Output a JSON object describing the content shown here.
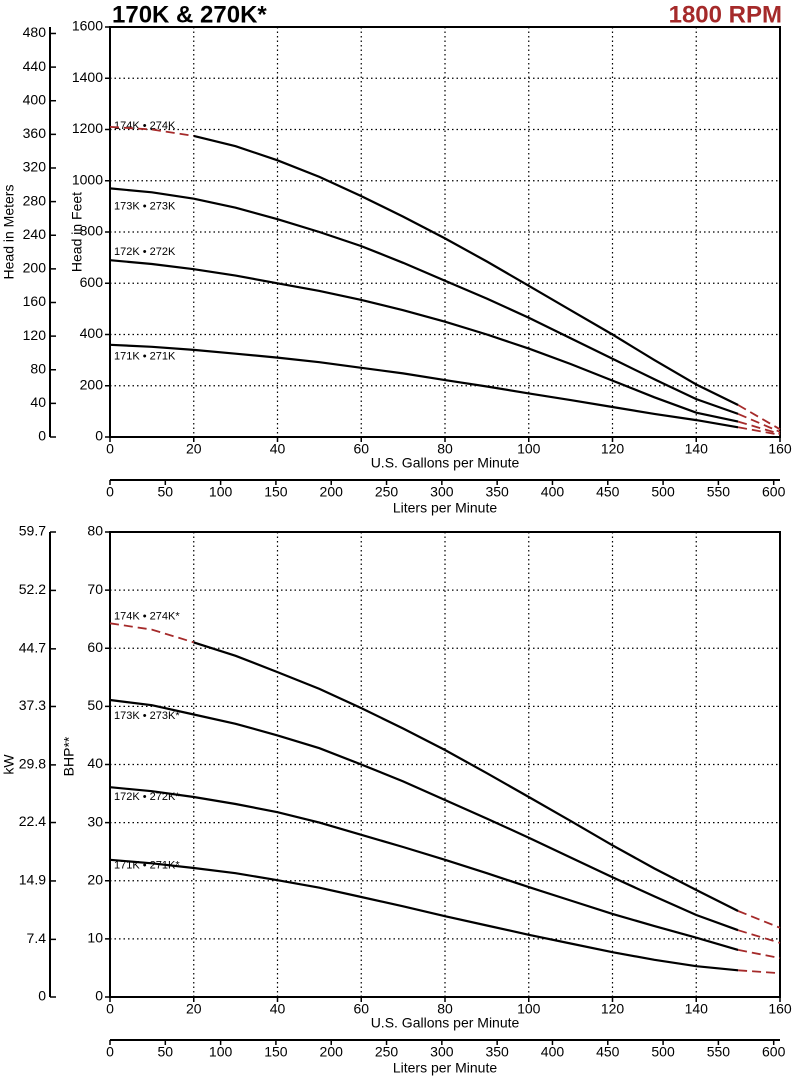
{
  "chart_data": [
    {
      "type": "line",
      "title": "170K & 270K*",
      "subtitle": "1800 RPM",
      "x": [
        0,
        10,
        20,
        30,
        40,
        50,
        60,
        70,
        80,
        90,
        100,
        110,
        120,
        130,
        140,
        150,
        160
      ],
      "xlim": [
        0,
        160
      ],
      "xticks": [
        0,
        20,
        40,
        60,
        80,
        100,
        120,
        140,
        160
      ],
      "xlabel": "U.S. Gallons per Minute",
      "x2lim": [
        0,
        605.7
      ],
      "x2ticks": [
        0,
        50,
        100,
        150,
        200,
        250,
        300,
        350,
        400,
        450,
        500,
        550,
        600
      ],
      "x2label": "Liters per Minute",
      "ylim": [
        0,
        1600
      ],
      "yticks": [
        0,
        200,
        400,
        600,
        800,
        1000,
        1200,
        1400,
        1600
      ],
      "ylabel": "Head in Feet",
      "y2lim": [
        0,
        487.7
      ],
      "y2ticks": [
        0,
        40,
        80,
        120,
        160,
        200,
        240,
        280,
        320,
        360,
        400,
        440,
        480
      ],
      "y2label": "Head in Meters",
      "grid": true,
      "series": [
        {
          "name": "174K • 274K",
          "color": "#000000",
          "values": [
            null,
            null,
            1175,
            1135,
            1080,
            1015,
            940,
            860,
            775,
            685,
            590,
            495,
            400,
            300,
            205,
            125,
            null
          ]
        },
        {
          "name": "173K • 273K",
          "color": "#000000",
          "values": [
            970,
            955,
            930,
            895,
            850,
            800,
            745,
            680,
            610,
            540,
            465,
            385,
            305,
            225,
            148,
            90,
            null
          ]
        },
        {
          "name": "172K • 272K",
          "color": "#000000",
          "values": [
            690,
            675,
            655,
            630,
            600,
            570,
            535,
            495,
            450,
            400,
            345,
            285,
            220,
            155,
            95,
            60,
            null
          ]
        },
        {
          "name": "171K • 271K",
          "color": "#000000",
          "values": [
            360,
            352,
            340,
            325,
            310,
            292,
            270,
            248,
            222,
            197,
            170,
            144,
            117,
            90,
            66,
            38,
            null
          ]
        },
        {
          "color": "#a52a2a",
          "dashed": true,
          "values": [
            1210,
            1200,
            1175,
            null,
            null,
            null,
            null,
            null,
            null,
            null,
            null,
            null,
            null,
            null,
            null,
            125,
            30
          ]
        },
        {
          "color": "#a52a2a",
          "dashed": true,
          "values": [
            null,
            null,
            null,
            null,
            null,
            null,
            null,
            null,
            null,
            null,
            null,
            null,
            null,
            null,
            null,
            90,
            20
          ]
        },
        {
          "color": "#a52a2a",
          "dashed": true,
          "values": [
            null,
            null,
            null,
            null,
            null,
            null,
            null,
            null,
            null,
            null,
            null,
            null,
            null,
            null,
            null,
            60,
            12
          ]
        },
        {
          "color": "#a52a2a",
          "dashed": true,
          "values": [
            null,
            null,
            null,
            null,
            null,
            null,
            null,
            null,
            null,
            null,
            null,
            null,
            null,
            null,
            null,
            38,
            8
          ]
        }
      ]
    },
    {
      "type": "line",
      "x": [
        0,
        10,
        20,
        30,
        40,
        50,
        60,
        70,
        80,
        90,
        100,
        110,
        120,
        130,
        140,
        150,
        160
      ],
      "xlim": [
        0,
        160
      ],
      "xticks": [
        0,
        20,
        40,
        60,
        80,
        100,
        120,
        140,
        160
      ],
      "xlabel": "U.S. Gallons per Minute",
      "x2lim": [
        0,
        605.7
      ],
      "x2ticks": [
        0,
        50,
        100,
        150,
        200,
        250,
        300,
        350,
        400,
        450,
        500,
        550,
        600
      ],
      "x2label": "Liters per Minute",
      "ylim": [
        0,
        80
      ],
      "yticks": [
        0,
        10,
        20,
        30,
        40,
        50,
        60,
        70,
        80
      ],
      "ylabel": "BHP**",
      "y2lim": [
        0,
        59.7
      ],
      "y2ticks": [
        0,
        7.4,
        14.9,
        22.4,
        29.8,
        37.3,
        44.7,
        52.2,
        59.7
      ],
      "y2label": "kW",
      "grid": true,
      "series": [
        {
          "name": "174K • 274K*",
          "color": "#000000",
          "values": [
            null,
            null,
            61,
            58.7,
            55.9,
            53,
            49.7,
            46.2,
            42.5,
            38.5,
            34.4,
            30.3,
            26.1,
            22.1,
            18.4,
            14.8,
            null
          ]
        },
        {
          "name": "173K • 273K*",
          "color": "#000000",
          "values": [
            51.1,
            50.2,
            48.6,
            47,
            45,
            42.8,
            40,
            37.1,
            33.9,
            30.7,
            27.4,
            24,
            20.6,
            17.3,
            14.1,
            11.5,
            null
          ]
        },
        {
          "name": "172K • 272K*",
          "color": "#000000",
          "values": [
            36.1,
            35.4,
            34.4,
            33.2,
            31.8,
            30,
            27.9,
            25.8,
            23.6,
            21.3,
            18.9,
            16.6,
            14.3,
            12.2,
            10.2,
            8.1,
            null
          ]
        },
        {
          "name": "171K • 271K*",
          "color": "#000000",
          "values": [
            23.6,
            23,
            22.2,
            21.3,
            20.1,
            18.8,
            17.2,
            15.6,
            13.9,
            12.3,
            10.7,
            9.2,
            7.7,
            6.4,
            5.3,
            4.6,
            null
          ]
        },
        {
          "color": "#a52a2a",
          "dashed": true,
          "values": [
            64.3,
            63.2,
            61,
            null,
            null,
            null,
            null,
            null,
            null,
            null,
            null,
            null,
            null,
            null,
            null,
            14.8,
            11.9
          ]
        },
        {
          "color": "#a52a2a",
          "dashed": true,
          "values": [
            null,
            null,
            null,
            null,
            null,
            null,
            null,
            null,
            null,
            null,
            null,
            null,
            null,
            null,
            null,
            11.5,
            9.3
          ]
        },
        {
          "color": "#a52a2a",
          "dashed": true,
          "values": [
            null,
            null,
            null,
            null,
            null,
            null,
            null,
            null,
            null,
            null,
            null,
            null,
            null,
            null,
            null,
            8.1,
            6.7
          ]
        },
        {
          "color": "#a52a2a",
          "dashed": true,
          "values": [
            null,
            null,
            null,
            null,
            null,
            null,
            null,
            null,
            null,
            null,
            null,
            null,
            null,
            null,
            null,
            4.6,
            4.1
          ]
        }
      ]
    }
  ]
}
